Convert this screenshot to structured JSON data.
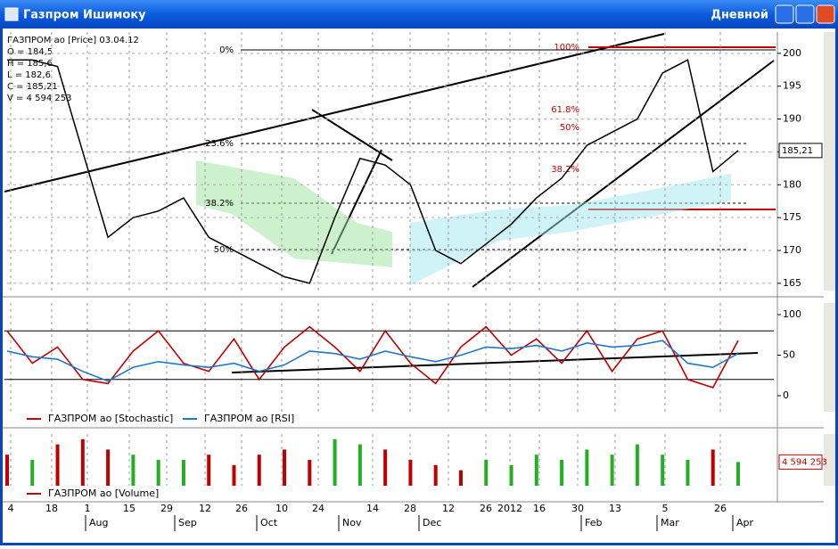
{
  "window": {
    "title": "Газпром Ишимоку",
    "timeframe": "Дневной"
  },
  "info": [
    "ГАЗПРОМ ао [Price] 03.04.12",
    "O = 184,5",
    "H = 185,6",
    "L = 182,6",
    "C = 185,21",
    "V = 4 594 253"
  ],
  "fib_labels": [
    "0%",
    "23.6%",
    "38.2%",
    "50%",
    "100%",
    "61.8%",
    "50%",
    "38.2%"
  ],
  "x_axis": {
    "days": [
      "4",
      "18",
      "1",
      "15",
      "29",
      "12",
      "26",
      "10",
      "24",
      "14",
      "28",
      "12",
      "26",
      "2012",
      "16",
      "30",
      "13",
      "5",
      "26"
    ],
    "months": [
      "Aug",
      "Sep",
      "Oct",
      "Nov",
      "Dec",
      "Feb",
      "Mar",
      "Apr"
    ]
  },
  "chart_data": [
    {
      "type": "line",
      "color": "#000000",
      "values": [
        199,
        199,
        198,
        185,
        172,
        175,
        176,
        178,
        172,
        170,
        168,
        166,
        165,
        175,
        184,
        183,
        180,
        170,
        168,
        171,
        174,
        178,
        181,
        186,
        188,
        190,
        197,
        199,
        182,
        185.21
      ],
      "last_value_label": "185,21",
      "ylim": [
        163.9,
        203.1
      ],
      "yticks": [
        165,
        170,
        175,
        180,
        185,
        190,
        195,
        200
      ],
      "grid": true
    },
    {
      "type": "line",
      "series": [
        {
          "name": "ГАЗПРОМ ао [Stochastic]",
          "color": "#c00000",
          "values": [
            80,
            40,
            60,
            20,
            15,
            55,
            80,
            40,
            30,
            70,
            20,
            60,
            85,
            60,
            30,
            80,
            40,
            15,
            60,
            85,
            50,
            70,
            40,
            80,
            30,
            70,
            80,
            20,
            10,
            68
          ]
        },
        {
          "name": "ГАЗПРОМ ао [RSI]",
          "color": "#1f78c8",
          "values": [
            55,
            48,
            45,
            30,
            18,
            35,
            42,
            38,
            35,
            40,
            30,
            38,
            55,
            52,
            45,
            55,
            48,
            42,
            50,
            60,
            58,
            62,
            55,
            65,
            60,
            62,
            68,
            40,
            35,
            52
          ]
        }
      ],
      "levels": [
        20,
        80
      ],
      "ylim": [
        -19.8,
        113.2
      ],
      "yticks": [
        0,
        50,
        100
      ],
      "grid": true
    },
    {
      "type": "bar",
      "series": [
        {
          "name": "ГАЗПРОМ ао [Volume]",
          "color": "#c00000",
          "values": [
            6000000,
            5000000,
            8000000,
            9000000,
            7000000,
            6000000,
            5000000,
            5000000,
            6000000,
            4000000,
            6000000,
            7000000,
            5000000,
            9000000,
            8000000,
            7000000,
            5000000,
            4000000,
            3000000,
            5000000,
            4000000,
            6000000,
            5000000,
            7000000,
            6000000,
            8000000,
            6000000,
            5000000,
            7000000,
            4594253
          ]
        }
      ],
      "last_value_label": "4 594 253",
      "ylim": [
        0,
        10000000
      ]
    }
  ]
}
